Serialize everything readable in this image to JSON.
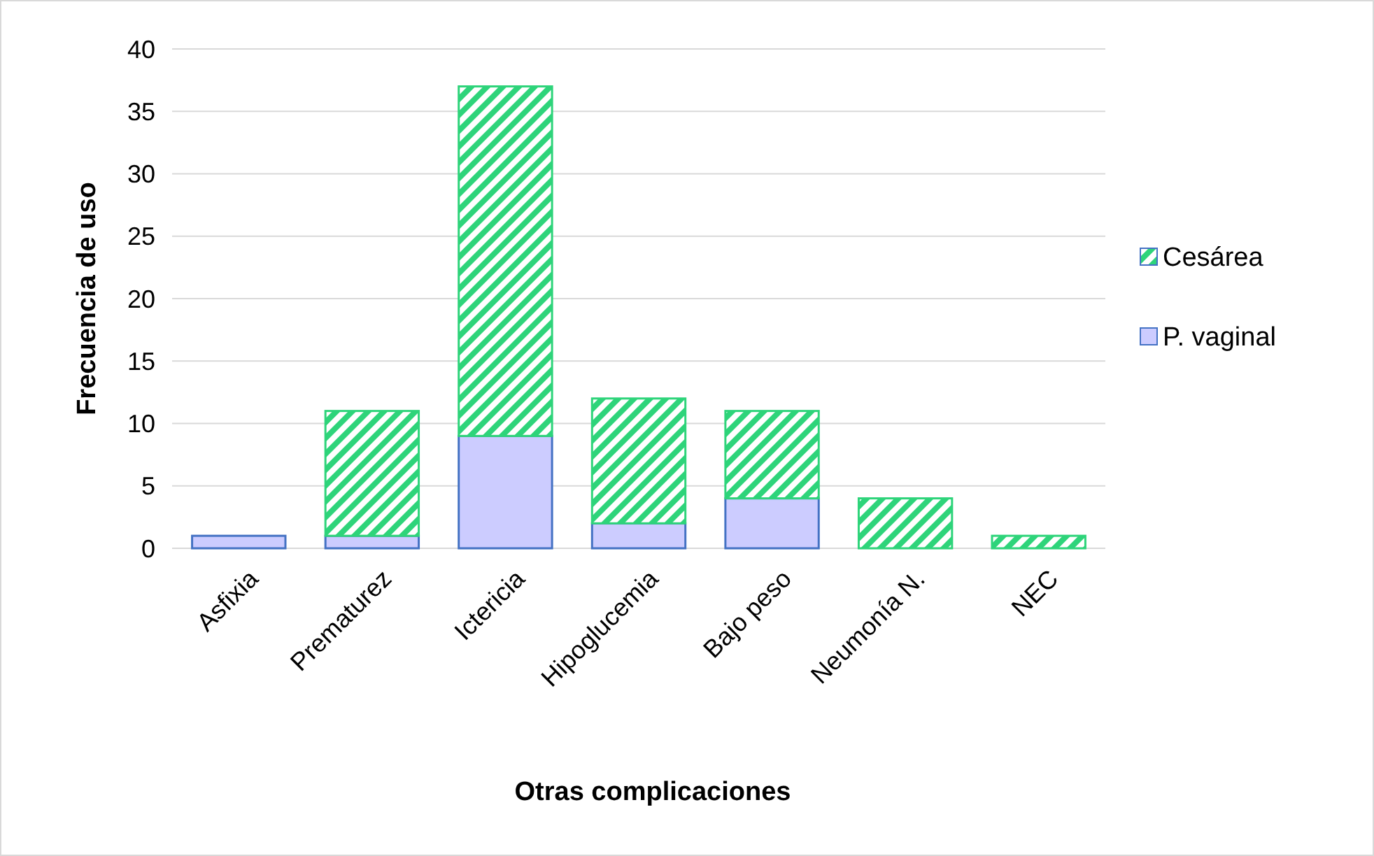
{
  "chart_data": {
    "type": "bar",
    "stacked": true,
    "xlabel": "Otras complicaciones",
    "ylabel": "Frecuencia de uso",
    "categories": [
      "Asfixia",
      "Prematurez",
      "Ictericia",
      "Hipoglucemia",
      "Bajo peso",
      "Neumonía N.",
      "NEC"
    ],
    "series": [
      {
        "name": "P. vaginal",
        "color": "#ccccff",
        "values": [
          1,
          1,
          9,
          2,
          4,
          0,
          0
        ]
      },
      {
        "name": "Cesárea",
        "color": "#2ed47a",
        "values": [
          0,
          10,
          28,
          10,
          7,
          4,
          1
        ]
      }
    ],
    "ylim": [
      0,
      40
    ],
    "yticks": [
      0,
      5,
      10,
      15,
      20,
      25,
      30,
      35,
      40
    ],
    "grid": "y",
    "legend": "right"
  }
}
